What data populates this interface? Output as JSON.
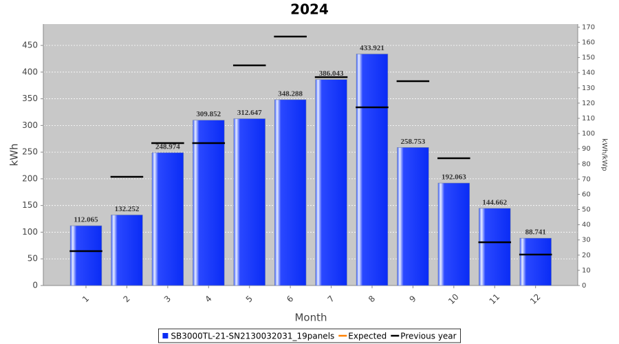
{
  "chart_data": {
    "type": "bar",
    "title": "2024",
    "x_label": "Month",
    "y_label": "kWh",
    "y2_label": "kWh/kWp",
    "categories": [
      "1",
      "2",
      "3",
      "4",
      "5",
      "6",
      "7",
      "8",
      "9",
      "10",
      "11",
      "12"
    ],
    "series": [
      {
        "name": "SB3000TL-21-SN2130032031_19panels",
        "color": "#0a2cf5",
        "mark": "bar",
        "values": [
          112.065,
          132.252,
          248.974,
          309.852,
          312.647,
          348.288,
          386.043,
          433.921,
          258.753,
          192.063,
          144.662,
          88.741
        ]
      },
      {
        "name": "Expected",
        "color": "#ff8000",
        "mark": "line",
        "values": [
          null,
          null,
          null,
          null,
          null,
          null,
          null,
          null,
          null,
          null,
          null,
          null
        ]
      },
      {
        "name": "Previous year",
        "color": "#000000",
        "mark": "dash",
        "values": [
          64.5,
          203.7,
          267,
          267,
          412.6,
          466.7,
          390.6,
          334,
          383,
          238.5,
          81,
          58
        ]
      }
    ],
    "ylim": [
      0,
      490
    ],
    "yticks": [
      0,
      50,
      100,
      150,
      200,
      250,
      300,
      350,
      400,
      450
    ],
    "y2lim": [
      0,
      172
    ],
    "y2ticks": [
      0,
      10,
      20,
      30,
      40,
      50,
      60,
      70,
      80,
      90,
      100,
      110,
      120,
      130,
      140,
      150,
      160,
      170
    ],
    "grid": true
  }
}
